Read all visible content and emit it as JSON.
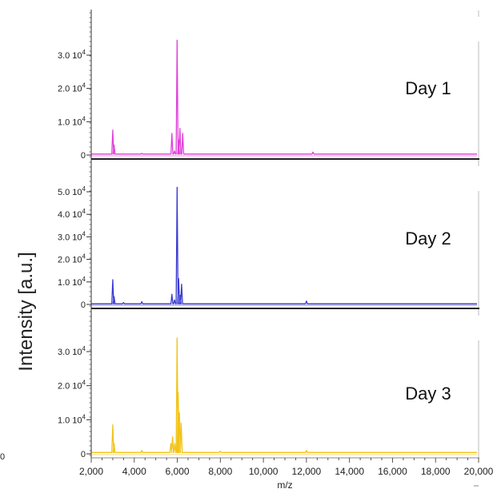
{
  "chart_data": {
    "type": "line",
    "ylabel": "Intensity [a.u.]",
    "xlabel": "m/z",
    "xlim": [
      2000,
      20000
    ],
    "xticks": [
      2000,
      4000,
      6000,
      8000,
      10000,
      12000,
      14000,
      16000,
      18000,
      20000
    ],
    "xtick_labels": [
      "2,000",
      "4,000",
      "6,000",
      "8,000",
      "10,000",
      "12,000",
      "14,000",
      "16,000",
      "18,000",
      "20,000"
    ],
    "stray_label_left": "0",
    "grid": false,
    "panels": [
      {
        "label": "Day 1",
        "color": "#e040d8",
        "ylim": [
          0,
          40000
        ],
        "yticks": [
          0,
          10000,
          20000,
          30000
        ],
        "ytick_labels": [
          {
            "mant": "0",
            "exp": ""
          },
          {
            "mant": "1.0 10",
            "exp": "4"
          },
          {
            "mant": "2.0 10",
            "exp": "4"
          },
          {
            "mant": "3.0 10",
            "exp": "4"
          }
        ],
        "baseline": 300,
        "peaks": [
          [
            3000,
            7500
          ],
          [
            3060,
            3000
          ],
          [
            4350,
            500
          ],
          [
            5750,
            6500
          ],
          [
            5870,
            1200
          ],
          [
            5990,
            34500
          ],
          [
            6060,
            4500
          ],
          [
            6120,
            8000
          ],
          [
            6250,
            6500
          ],
          [
            12300,
            900
          ]
        ]
      },
      {
        "label": "Day 2",
        "color": "#3a3ad0",
        "ylim": [
          0,
          55000
        ],
        "yticks": [
          0,
          10000,
          20000,
          30000,
          40000,
          50000
        ],
        "ytick_labels": [
          {
            "mant": "0",
            "exp": ""
          },
          {
            "mant": "1.0 10",
            "exp": "4"
          },
          {
            "mant": "2.0 10",
            "exp": "4"
          },
          {
            "mant": "3.0 10",
            "exp": "4"
          },
          {
            "mant": "4.0 10",
            "exp": "4"
          },
          {
            "mant": "5.0 10",
            "exp": "4"
          }
        ],
        "baseline": 300,
        "peaks": [
          [
            3000,
            11000
          ],
          [
            3060,
            3500
          ],
          [
            3500,
            800
          ],
          [
            4350,
            1200
          ],
          [
            5750,
            4500
          ],
          [
            5870,
            2000
          ],
          [
            5990,
            52000
          ],
          [
            6060,
            11500
          ],
          [
            6130,
            4000
          ],
          [
            6200,
            9000
          ],
          [
            12000,
            1500
          ]
        ]
      },
      {
        "label": "Day 3",
        "color": "#f2c318",
        "ylim": [
          0,
          40000
        ],
        "yticks": [
          0,
          10000,
          20000,
          30000
        ],
        "ytick_labels": [
          {
            "mant": "0",
            "exp": ""
          },
          {
            "mant": "1.0 10",
            "exp": "4"
          },
          {
            "mant": "2.0 10",
            "exp": "4"
          },
          {
            "mant": "3.0 10",
            "exp": "4"
          }
        ],
        "baseline": 400,
        "peaks": [
          [
            3000,
            8500
          ],
          [
            3060,
            3000
          ],
          [
            4350,
            1000
          ],
          [
            5700,
            3000
          ],
          [
            5780,
            5000
          ],
          [
            5880,
            3000
          ],
          [
            5990,
            34000
          ],
          [
            6040,
            18000
          ],
          [
            6100,
            12000
          ],
          [
            6180,
            9000
          ],
          [
            8000,
            800
          ],
          [
            12000,
            1000
          ]
        ]
      }
    ]
  }
}
